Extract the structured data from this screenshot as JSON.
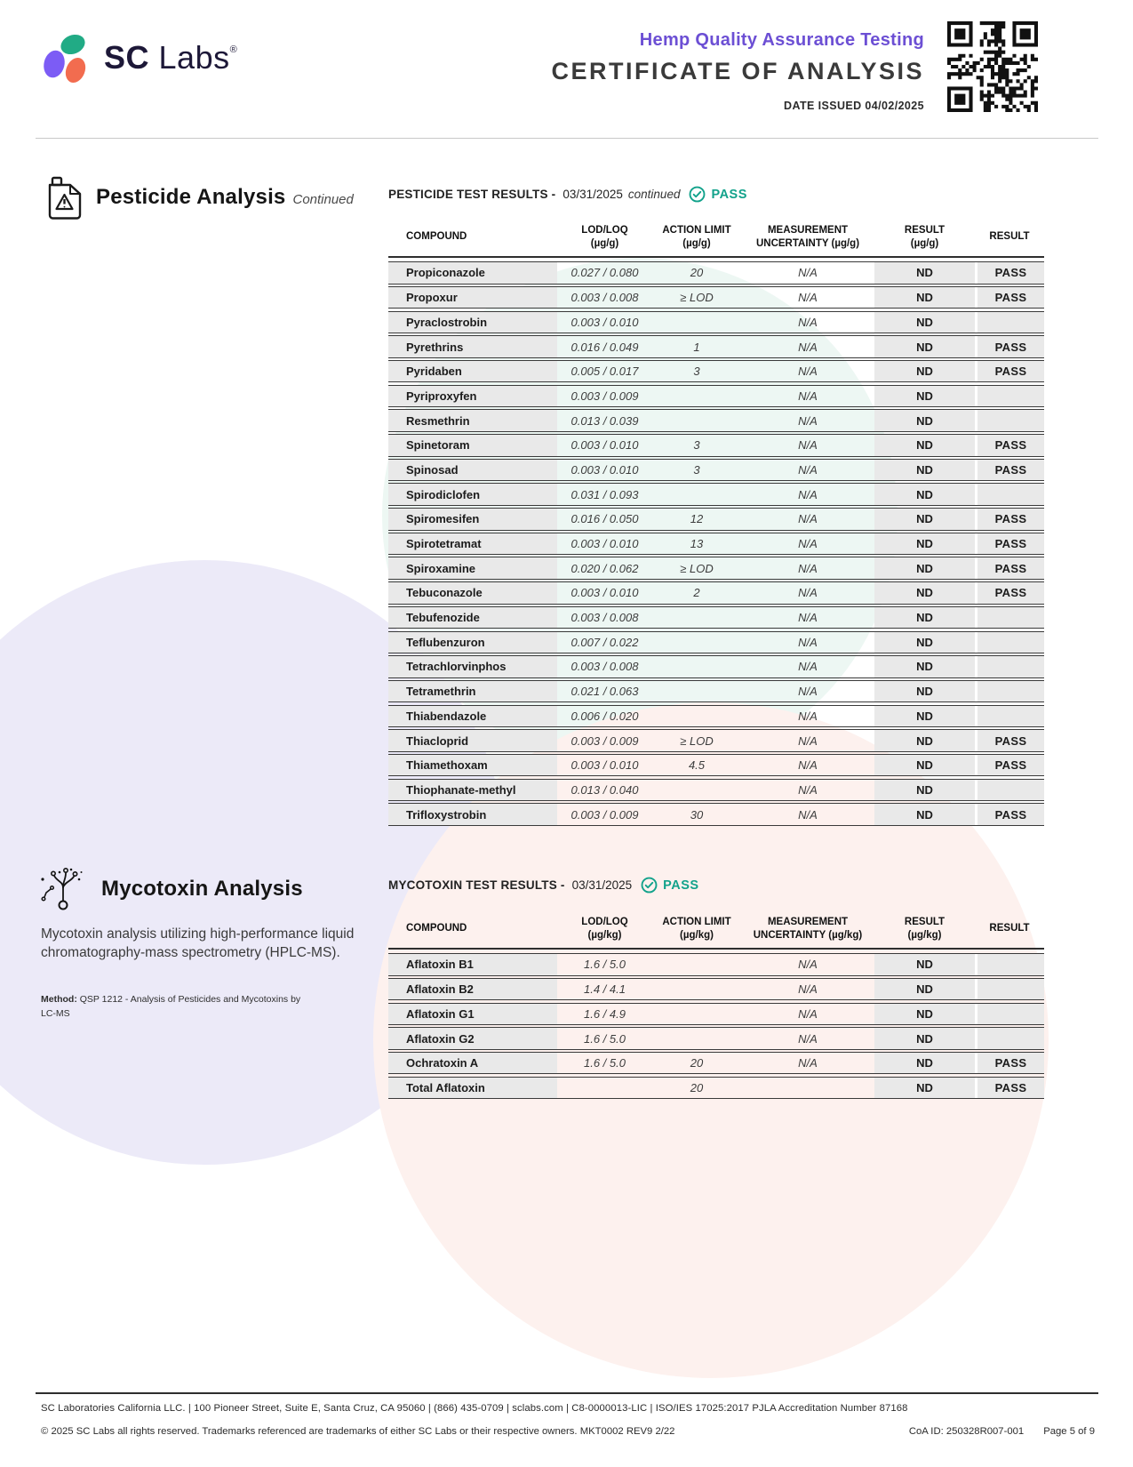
{
  "colors": {
    "brand_purple": "#6c4fd4",
    "pass_teal": "#12a28b",
    "logo_navy": "#1d1838",
    "logo_purple": "#7c5cf5",
    "logo_green": "#21ab85",
    "logo_coral": "#f26c4f",
    "row_gray": "#e9e9e9"
  },
  "header": {
    "logo_bold": "SC",
    "logo_light": "Labs",
    "logo_reg": "®",
    "program": "Hemp Quality Assurance Testing",
    "doc_title": "CERTIFICATE OF ANALYSIS",
    "date_issued": "DATE ISSUED 04/02/2025"
  },
  "pesticide_section": {
    "title": "Pesticide Analysis",
    "title_suffix": "Continued",
    "results_label": "PESTICIDE TEST RESULTS -",
    "results_date": "03/31/2025",
    "results_suffix": "continued",
    "results_status": "PASS",
    "table": {
      "columns": [
        "compound",
        "lod_loq",
        "action_limit",
        "uncertainty",
        "result",
        "status"
      ],
      "headers": [
        {
          "lines": [
            "COMPOUND"
          ]
        },
        {
          "lines": [
            "LOD/LOQ",
            "(µg/g)"
          ]
        },
        {
          "lines": [
            "ACTION LIMIT",
            "(µg/g)"
          ]
        },
        {
          "lines": [
            "MEASUREMENT",
            "UNCERTAINTY (µg/g)"
          ]
        },
        {
          "lines": [
            "RESULT",
            "(µg/g)"
          ]
        },
        {
          "lines": [
            "RESULT"
          ]
        }
      ],
      "rows": [
        {
          "compound": "Propiconazole",
          "lod_loq": "0.027 / 0.080",
          "action_limit": "20",
          "uncertainty": "N/A",
          "result": "ND",
          "status": "PASS"
        },
        {
          "compound": "Propoxur",
          "lod_loq": "0.003 / 0.008",
          "action_limit": "≥ LOD",
          "uncertainty": "N/A",
          "result": "ND",
          "status": "PASS"
        },
        {
          "compound": "Pyraclostrobin",
          "lod_loq": "0.003 / 0.010",
          "action_limit": "",
          "uncertainty": "N/A",
          "result": "ND",
          "status": ""
        },
        {
          "compound": "Pyrethrins",
          "lod_loq": "0.016 / 0.049",
          "action_limit": "1",
          "uncertainty": "N/A",
          "result": "ND",
          "status": "PASS"
        },
        {
          "compound": "Pyridaben",
          "lod_loq": "0.005 / 0.017",
          "action_limit": "3",
          "uncertainty": "N/A",
          "result": "ND",
          "status": "PASS"
        },
        {
          "compound": "Pyriproxyfen",
          "lod_loq": "0.003 / 0.009",
          "action_limit": "",
          "uncertainty": "N/A",
          "result": "ND",
          "status": ""
        },
        {
          "compound": "Resmethrin",
          "lod_loq": "0.013 / 0.039",
          "action_limit": "",
          "uncertainty": "N/A",
          "result": "ND",
          "status": ""
        },
        {
          "compound": "Spinetoram",
          "lod_loq": "0.003 / 0.010",
          "action_limit": "3",
          "uncertainty": "N/A",
          "result": "ND",
          "status": "PASS"
        },
        {
          "compound": "Spinosad",
          "lod_loq": "0.003 / 0.010",
          "action_limit": "3",
          "uncertainty": "N/A",
          "result": "ND",
          "status": "PASS"
        },
        {
          "compound": "Spirodiclofen",
          "lod_loq": "0.031 / 0.093",
          "action_limit": "",
          "uncertainty": "N/A",
          "result": "ND",
          "status": ""
        },
        {
          "compound": "Spiromesifen",
          "lod_loq": "0.016 / 0.050",
          "action_limit": "12",
          "uncertainty": "N/A",
          "result": "ND",
          "status": "PASS"
        },
        {
          "compound": "Spirotetramat",
          "lod_loq": "0.003 / 0.010",
          "action_limit": "13",
          "uncertainty": "N/A",
          "result": "ND",
          "status": "PASS"
        },
        {
          "compound": "Spiroxamine",
          "lod_loq": "0.020 / 0.062",
          "action_limit": "≥ LOD",
          "uncertainty": "N/A",
          "result": "ND",
          "status": "PASS"
        },
        {
          "compound": "Tebuconazole",
          "lod_loq": "0.003 / 0.010",
          "action_limit": "2",
          "uncertainty": "N/A",
          "result": "ND",
          "status": "PASS"
        },
        {
          "compound": "Tebufenozide",
          "lod_loq": "0.003 / 0.008",
          "action_limit": "",
          "uncertainty": "N/A",
          "result": "ND",
          "status": ""
        },
        {
          "compound": "Teflubenzuron",
          "lod_loq": "0.007 / 0.022",
          "action_limit": "",
          "uncertainty": "N/A",
          "result": "ND",
          "status": ""
        },
        {
          "compound": "Tetrachlorvinphos",
          "lod_loq": "0.003 / 0.008",
          "action_limit": "",
          "uncertainty": "N/A",
          "result": "ND",
          "status": ""
        },
        {
          "compound": "Tetramethrin",
          "lod_loq": "0.021 / 0.063",
          "action_limit": "",
          "uncertainty": "N/A",
          "result": "ND",
          "status": ""
        },
        {
          "compound": "Thiabendazole",
          "lod_loq": "0.006 / 0.020",
          "action_limit": "",
          "uncertainty": "N/A",
          "result": "ND",
          "status": ""
        },
        {
          "compound": "Thiacloprid",
          "lod_loq": "0.003 / 0.009",
          "action_limit": "≥ LOD",
          "uncertainty": "N/A",
          "result": "ND",
          "status": "PASS"
        },
        {
          "compound": "Thiamethoxam",
          "lod_loq": "0.003 / 0.010",
          "action_limit": "4.5",
          "uncertainty": "N/A",
          "result": "ND",
          "status": "PASS"
        },
        {
          "compound": "Thiophanate-methyl",
          "lod_loq": "0.013 / 0.040",
          "action_limit": "",
          "uncertainty": "N/A",
          "result": "ND",
          "status": ""
        },
        {
          "compound": "Trifloxystrobin",
          "lod_loq": "0.003 / 0.009",
          "action_limit": "30",
          "uncertainty": "N/A",
          "result": "ND",
          "status": "PASS"
        }
      ]
    }
  },
  "mycotoxin_section": {
    "title": "Mycotoxin Analysis",
    "description": "Mycotoxin analysis utilizing high-performance liquid chromatography-mass spectrometry (HPLC-MS).",
    "method_label": "Method:",
    "method_text": " QSP 1212 - Analysis of Pesticides and Mycotoxins by LC-MS",
    "results_label": "MYCOTOXIN TEST RESULTS -",
    "results_date": "03/31/2025",
    "results_status": "PASS",
    "table": {
      "columns": [
        "compound",
        "lod_loq",
        "action_limit",
        "uncertainty",
        "result",
        "status"
      ],
      "headers": [
        {
          "lines": [
            "COMPOUND"
          ]
        },
        {
          "lines": [
            "LOD/LOQ",
            "(µg/kg)"
          ]
        },
        {
          "lines": [
            "ACTION LIMIT",
            "(µg/kg)"
          ]
        },
        {
          "lines": [
            "MEASUREMENT",
            "UNCERTAINTY (µg/kg)"
          ]
        },
        {
          "lines": [
            "RESULT",
            "(µg/kg)"
          ]
        },
        {
          "lines": [
            "RESULT"
          ]
        }
      ],
      "rows": [
        {
          "compound": "Aflatoxin B1",
          "lod_loq": "1.6 / 5.0",
          "action_limit": "",
          "uncertainty": "N/A",
          "result": "ND",
          "status": ""
        },
        {
          "compound": "Aflatoxin B2",
          "lod_loq": "1.4 / 4.1",
          "action_limit": "",
          "uncertainty": "N/A",
          "result": "ND",
          "status": ""
        },
        {
          "compound": "Aflatoxin G1",
          "lod_loq": "1.6 / 4.9",
          "action_limit": "",
          "uncertainty": "N/A",
          "result": "ND",
          "status": ""
        },
        {
          "compound": "Aflatoxin G2",
          "lod_loq": "1.6 / 5.0",
          "action_limit": "",
          "uncertainty": "N/A",
          "result": "ND",
          "status": ""
        },
        {
          "compound": "Ochratoxin A",
          "lod_loq": "1.6 / 5.0",
          "action_limit": "20",
          "uncertainty": "N/A",
          "result": "ND",
          "status": "PASS"
        },
        {
          "compound": "Total Aflatoxin",
          "lod_loq": "",
          "action_limit": "20",
          "uncertainty": "",
          "result": "ND",
          "status": "PASS"
        }
      ]
    }
  },
  "footer": {
    "line1": "SC Laboratories California LLC. | 100 Pioneer Street, Suite E, Santa Cruz, CA 95060 | (866) 435-0709 | sclabs.com | C8-0000013-LIC | ISO/IES 17025:2017 PJLA Accreditation Number 87168",
    "line2": "© 2025 SC Labs all rights reserved. Trademarks referenced are trademarks of either SC Labs or their respective owners. MKT0002 REV9 2/22",
    "coa_id": "CoA ID: 250328R007-001",
    "page": "Page 5 of 9"
  }
}
